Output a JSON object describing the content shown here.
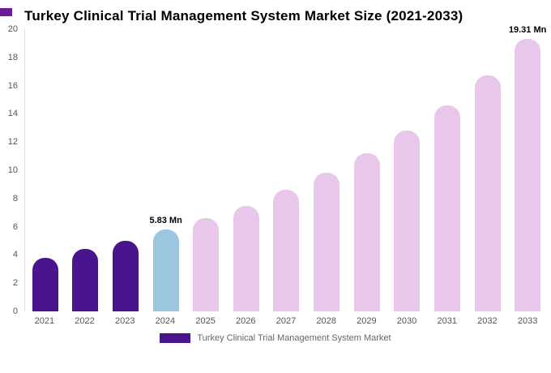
{
  "chart": {
    "title": "Turkey Clinical Trial Management System Market Size (2021-2033)"
  },
  "legend": {
    "label": "Turkey Clinical Trial Management System Market",
    "swatch_color": "#4a148c"
  },
  "chart_data": {
    "type": "bar",
    "title": "Turkey Clinical Trial Management System Market Size (2021-2033)",
    "categories": [
      "2021",
      "2022",
      "2023",
      "2024",
      "2025",
      "2026",
      "2027",
      "2028",
      "2029",
      "2030",
      "2031",
      "2032",
      "2033"
    ],
    "values": [
      3.8,
      4.4,
      5.0,
      5.83,
      6.6,
      7.5,
      8.6,
      9.8,
      11.2,
      12.8,
      14.6,
      16.7,
      19.31
    ],
    "bar_labels": [
      "",
      "",
      "",
      "5.83 Mn",
      "",
      "",
      "",
      "",
      "",
      "",
      "",
      "",
      "19.31 Mn"
    ],
    "bar_color_keys": [
      "historical",
      "historical",
      "historical",
      "current",
      "forecast",
      "forecast",
      "forecast",
      "forecast",
      "forecast",
      "forecast",
      "forecast",
      "forecast",
      "forecast"
    ],
    "colors": {
      "historical": "#4a148c",
      "current": "#9cc6e0",
      "forecast": "#e8c7eb"
    },
    "ylim": [
      0,
      20
    ],
    "yticks": [
      0,
      2,
      4,
      6,
      8,
      10,
      12,
      14,
      16,
      18,
      20
    ],
    "xlabel": "",
    "ylabel": "",
    "grid": false,
    "legend_position": "bottom-center",
    "unit": "Mn"
  }
}
